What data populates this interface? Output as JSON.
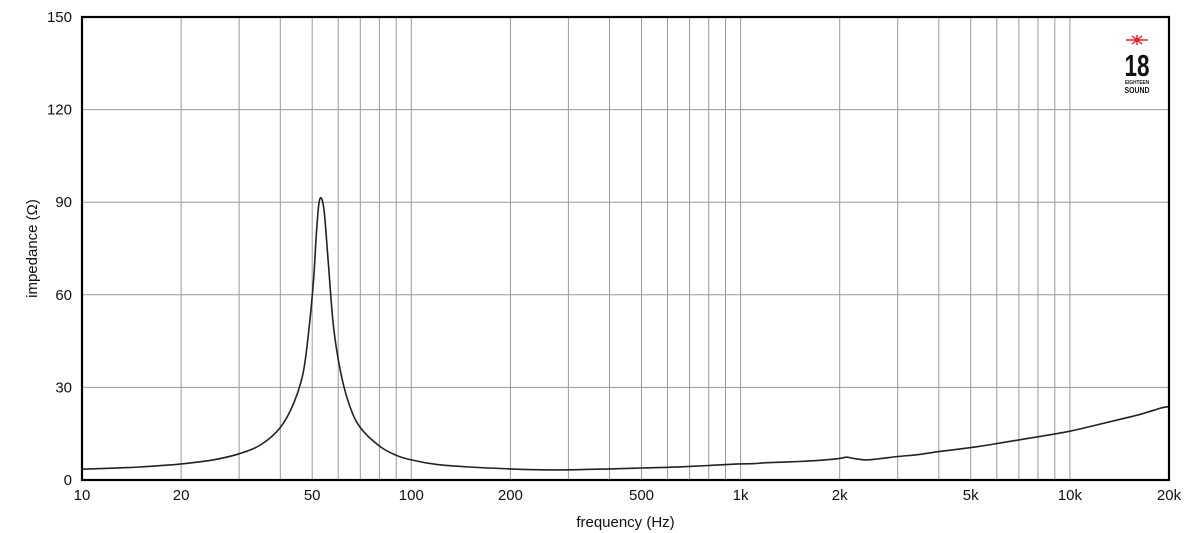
{
  "chart_data": {
    "type": "line",
    "title": "",
    "xlabel": "frequency (Hz)",
    "ylabel": "impedance (Ω)",
    "xscale": "log",
    "xlim": [
      10,
      20000
    ],
    "ylim": [
      0,
      150
    ],
    "grid": true,
    "legend": "none",
    "x_ticks": [
      {
        "value": 10,
        "label": "10"
      },
      {
        "value": 20,
        "label": "20"
      },
      {
        "value": 50,
        "label": "50"
      },
      {
        "value": 100,
        "label": "100"
      },
      {
        "value": 200,
        "label": "200"
      },
      {
        "value": 500,
        "label": "500"
      },
      {
        "value": 1000,
        "label": "1k"
      },
      {
        "value": 2000,
        "label": "2k"
      },
      {
        "value": 5000,
        "label": "5k"
      },
      {
        "value": 10000,
        "label": "10k"
      },
      {
        "value": 20000,
        "label": "20k"
      }
    ],
    "x_minor_grid": [
      30,
      40,
      60,
      70,
      80,
      90,
      300,
      400,
      600,
      700,
      800,
      900,
      3000,
      4000,
      6000,
      7000,
      8000,
      9000
    ],
    "y_ticks": [
      0,
      30,
      60,
      90,
      120,
      150
    ],
    "series": [
      {
        "name": "impedance",
        "color": "#222222",
        "x": [
          10,
          12,
          15,
          18,
          20,
          25,
          30,
          35,
          40,
          44,
          47,
          49,
          50.5,
          51.5,
          52.5,
          53.5,
          54.5,
          56,
          58,
          61,
          65,
          70,
          80,
          90,
          100,
          120,
          150,
          200,
          250,
          300,
          400,
          500,
          600,
          700,
          800,
          900,
          1000,
          1100,
          1200,
          1500,
          1800,
          2000,
          2100,
          2200,
          2400,
          2600,
          3000,
          3500,
          4000,
          5000,
          6000,
          7000,
          8000,
          10000,
          12000,
          14000,
          16000,
          18000,
          19000,
          20000
        ],
        "y": [
          3.5,
          3.8,
          4.2,
          4.8,
          5.2,
          6.5,
          8.5,
          11.5,
          17,
          25,
          35,
          50,
          65,
          80,
          90,
          91,
          86,
          70,
          50,
          35,
          24,
          17,
          11,
          8,
          6.5,
          5,
          4.2,
          3.6,
          3.3,
          3.3,
          3.6,
          3.9,
          4.1,
          4.4,
          4.7,
          5,
          5.2,
          5.3,
          5.6,
          6,
          6.5,
          7,
          7.4,
          7,
          6.5,
          6.8,
          7.6,
          8.3,
          9.2,
          10.5,
          11.8,
          13,
          14,
          15.8,
          17.8,
          19.5,
          21,
          22.6,
          23.4,
          23.8
        ]
      }
    ],
    "annotations": [
      {
        "type": "logo",
        "text_main": "18",
        "text_sub1": "EIGHTEEN",
        "text_sub2": "SOUND",
        "mark_color": "#e8202a"
      }
    ]
  }
}
